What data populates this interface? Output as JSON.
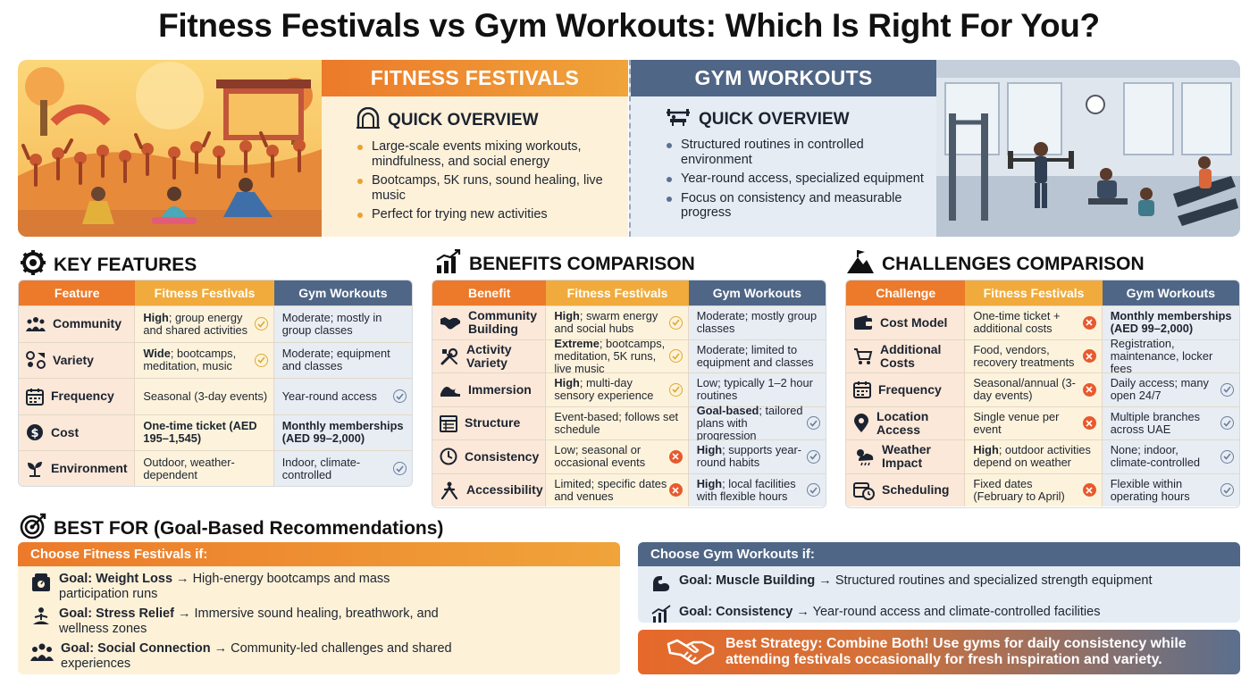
{
  "title": "Fitness Festivals vs Gym Workouts: Which Is Right For You?",
  "overview": {
    "festivals": {
      "header": "FITNESS FESTIVALS",
      "subheading": "QUICK OVERVIEW",
      "items": [
        "Large-scale events mixing workouts, mindfulness, and social energy",
        "Bootcamps, 5K runs, sound healing, live music",
        "Perfect for trying new activities"
      ]
    },
    "gym": {
      "header": "GYM WORKOUTS",
      "subheading": "QUICK OVERVIEW",
      "items": [
        "Structured routines in controlled environment",
        "Year-round access, specialized equipment",
        "Focus on consistency and measurable progress"
      ]
    }
  },
  "key_features": {
    "heading": "KEY FEATURES",
    "columns": [
      "Feature",
      "Fitness Festivals",
      "Gym Workouts"
    ],
    "rows": [
      {
        "label": "Community",
        "icon": "people-icon",
        "fest_bold": "High",
        "fest": "; group energy and shared activities",
        "fest_mark": "check",
        "gym_bold": "",
        "gym": "Moderate; mostly in group classes",
        "gym_mark": ""
      },
      {
        "label": "Variety",
        "icon": "variety-icon",
        "fest_bold": "Wide",
        "fest": "; bootcamps, meditation, music",
        "fest_mark": "check",
        "gym_bold": "",
        "gym": "Moderate; equipment and classes",
        "gym_mark": ""
      },
      {
        "label": "Frequency",
        "icon": "calendar-icon",
        "fest_bold": "",
        "fest": "Seasonal (3-day events)",
        "fest_mark": "",
        "gym_bold": "",
        "gym": "Year-round access",
        "gym_mark": "check"
      },
      {
        "label": "Cost",
        "icon": "dollar-icon",
        "fest_bold": "One-time ticket (AED 195–1,545)",
        "fest": "",
        "fest_mark": "",
        "gym_bold": "Monthly memberships (AED 99–2,000)",
        "gym": "",
        "gym_mark": ""
      },
      {
        "label": "Environment",
        "icon": "plant-icon",
        "fest_bold": "",
        "fest": "Outdoor, weather-dependent",
        "fest_mark": "",
        "gym_bold": "",
        "gym": "Indoor, climate-controlled",
        "gym_mark": "check"
      }
    ]
  },
  "benefits": {
    "heading": "BENEFITS COMPARISON",
    "columns": [
      "Benefit",
      "Fitness Festivals",
      "Gym Workouts"
    ],
    "rows": [
      {
        "label": "Community Building",
        "icon": "handshake-icon",
        "fest_bold": "High",
        "fest": "; swarm energy and social hubs",
        "fest_mark": "check",
        "gym_bold": "",
        "gym": "Moderate; mostly group classes",
        "gym_mark": ""
      },
      {
        "label": "Activity Variety",
        "icon": "tools-icon",
        "fest_bold": "Extreme",
        "fest": "; bootcamps, meditation, 5K runs, live music",
        "fest_mark": "check",
        "gym_bold": "",
        "gym": "Moderate; limited to equipment and classes",
        "gym_mark": ""
      },
      {
        "label": "Immersion",
        "icon": "wave-icon",
        "fest_bold": "High",
        "fest": "; multi-day sensory experience",
        "fest_mark": "check",
        "gym_bold": "",
        "gym": "Low; typically 1–2 hour routines",
        "gym_mark": ""
      },
      {
        "label": "Structure",
        "icon": "schedule-icon",
        "fest_bold": "",
        "fest": "Event-based; follows set schedule",
        "fest_mark": "",
        "gym_bold": "Goal-based",
        "gym": "; tailored plans with progression",
        "gym_mark": "check"
      },
      {
        "label": "Consistency",
        "icon": "clock-icon",
        "fest_bold": "",
        "fest": "Low; seasonal or occasional events",
        "fest_mark": "x",
        "gym_bold": "High",
        "gym": "; supports year-round habits",
        "gym_mark": "check"
      },
      {
        "label": "Accessibility",
        "icon": "access-icon",
        "fest_bold": "",
        "fest": "Limited; specific dates and venues",
        "fest_mark": "x",
        "gym_bold": "High",
        "gym": "; local facilities with flexible hours",
        "gym_mark": "check"
      }
    ]
  },
  "challenges": {
    "heading": "CHALLENGES COMPARISON",
    "columns": [
      "Challenge",
      "Fitness Festivals",
      "Gym Workouts"
    ],
    "rows": [
      {
        "label": "Cost Model",
        "icon": "wallet-icon",
        "fest_bold": "",
        "fest": "One-time ticket + additional costs",
        "fest_mark": "x",
        "gym_bold": "Monthly memberships (AED 99–2,000)",
        "gym": "",
        "gym_mark": ""
      },
      {
        "label": "Additional Costs",
        "icon": "cart-icon",
        "fest_bold": "",
        "fest": "Food, vendors, recovery treatments",
        "fest_mark": "x",
        "gym_bold": "",
        "gym": "Registration, maintenance, locker fees",
        "gym_mark": ""
      },
      {
        "label": "Frequency",
        "icon": "calendar-icon",
        "fest_bold": "",
        "fest": "Seasonal/annual (3-day events)",
        "fest_mark": "x",
        "gym_bold": "",
        "gym": "Daily access; many open 24/7",
        "gym_mark": "check"
      },
      {
        "label": "Location Access",
        "icon": "pin-icon",
        "fest_bold": "",
        "fest": "Single venue per event",
        "fest_mark": "x",
        "gym_bold": "",
        "gym": "Multiple branches across UAE",
        "gym_mark": "check"
      },
      {
        "label": "Weather Impact",
        "icon": "weather-icon",
        "fest_bold": "High",
        "fest": "; outdoor activities depend on weather",
        "fest_mark": "",
        "gym_bold": "",
        "gym": "None; indoor, climate-controlled",
        "gym_mark": "check"
      },
      {
        "label": "Scheduling",
        "icon": "calendar-clock-icon",
        "fest_bold": "",
        "fest": "Fixed dates (February to April)",
        "fest_mark": "x",
        "gym_bold": "",
        "gym": "Flexible within operating hours",
        "gym_mark": "check"
      }
    ]
  },
  "best_for": {
    "heading": "BEST FOR (Goal-Based Recommendations)",
    "festivals": {
      "header": "Choose Fitness Festivals if:",
      "goals": [
        {
          "goal": "Goal: Weight Loss",
          "text": " → High-energy bootcamps and mass participation runs",
          "icon": "scale-icon"
        },
        {
          "goal": "Goal: Stress Relief",
          "text": " → Immersive sound healing, breathwork, and wellness zones",
          "icon": "meditation-icon"
        },
        {
          "goal": "Goal: Social Connection",
          "text": " → Community-led challenges and shared experiences",
          "icon": "group-icon"
        }
      ]
    },
    "gym": {
      "header": "Choose Gym Workouts if:",
      "goals": [
        {
          "goal": "Goal: Muscle Building",
          "text": " → Structured routines and specialized strength equipment",
          "icon": "muscle-icon"
        },
        {
          "goal": "Goal: Consistency",
          "text": " → Year-round access and climate-controlled facilities",
          "icon": "bar-chart-icon"
        }
      ]
    },
    "strategy": "Best Strategy: Combine Both! Use gyms for daily consistency while attending festivals occasionally for fresh inspiration and variety."
  },
  "colors": {
    "festival_orange": "#ec7a2a",
    "festival_amber": "#f0ab3c",
    "gym_slate": "#4f6686",
    "fail_red": "#e8592e"
  }
}
